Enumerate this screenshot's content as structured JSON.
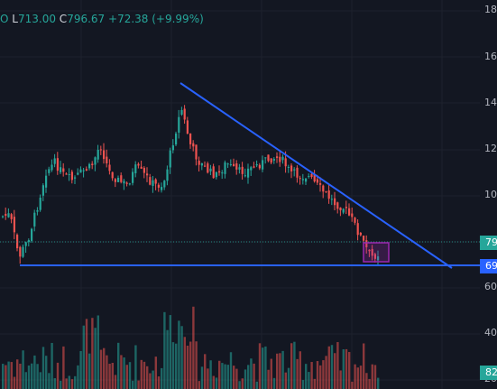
{
  "legend": {
    "leading": "O",
    "low_key": "L",
    "low_value": "713.00",
    "close_key": "C",
    "close_value": "796.67",
    "change": "+72.38 (+9.99%)"
  },
  "price_axis": {
    "labels": [
      "18",
      "16",
      "14",
      "12",
      "10",
      "60",
      "40",
      "20"
    ]
  },
  "price_tags": {
    "current": "79",
    "support": "69",
    "volume": "82"
  },
  "colors": {
    "background": "#131722",
    "bull": "#26a69a",
    "bear": "#ef5350",
    "trendline": "#2962ff",
    "box": "#9c27b0",
    "tag_current": "#26a69a",
    "tag_support": "#2962ff",
    "tag_volume": "#26a69a"
  },
  "chart_data": {
    "type": "candlestick",
    "y_axis_visible_labels": [
      "18",
      "16",
      "14",
      "12",
      "10",
      "60",
      "40",
      "20"
    ],
    "last_close": 796.67,
    "last_low": 713.0,
    "last_change": 72.38,
    "last_change_pct": 9.99
  }
}
